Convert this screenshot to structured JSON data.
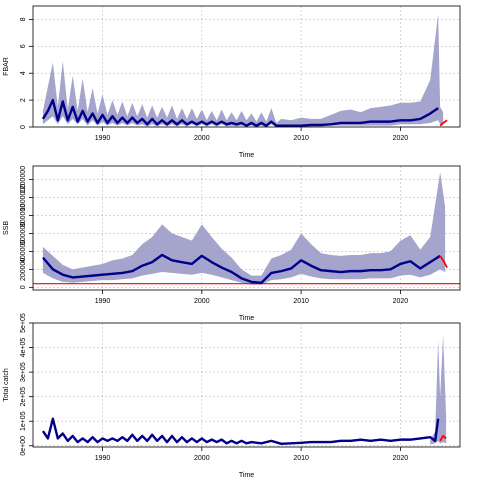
{
  "colors": {
    "median": "#00008b",
    "band": "#9a9ac8",
    "forecast": "#ff0000",
    "grid": "#bbbbbb"
  },
  "chart_data": [
    {
      "type": "line",
      "title": "",
      "xlabel": "Time",
      "ylabel": "FBAR",
      "xlim": [
        1983,
        2026
      ],
      "ylim": [
        0,
        9
      ],
      "xticks": [
        1990,
        2000,
        2010,
        2020
      ],
      "yticks": [
        0,
        2,
        4,
        6,
        8
      ],
      "ytick_labels": [
        "0",
        "2",
        "4",
        "6",
        "8"
      ],
      "grid": true,
      "band": {
        "x": [
          1984.0,
          1984.5,
          1985.0,
          1985.5,
          1986.0,
          1986.5,
          1987.0,
          1987.5,
          1988.0,
          1988.5,
          1989.0,
          1989.5,
          1990.0,
          1990.5,
          1991.0,
          1991.5,
          1992.0,
          1992.5,
          1993.0,
          1993.5,
          1994.0,
          1994.5,
          1995.0,
          1995.5,
          1996.0,
          1996.5,
          1997.0,
          1997.5,
          1998.0,
          1998.5,
          1999.0,
          1999.5,
          2000.0,
          2000.5,
          2001.0,
          2001.5,
          2002.0,
          2002.5,
          2003.0,
          2003.5,
          2004.0,
          2004.5,
          2005.0,
          2005.5,
          2006.0,
          2006.5,
          2007.0,
          2007.5,
          2008.0,
          2009.0,
          2010.0,
          2011.0,
          2012.0,
          2013.0,
          2014.0,
          2015.0,
          2016.0,
          2017.0,
          2018.0,
          2019.0,
          2020.0,
          2021.0,
          2022.0,
          2023.0,
          2023.8,
          2024.0,
          2024.3
        ],
        "upper": [
          1.2,
          3.0,
          4.8,
          1.5,
          4.9,
          1.3,
          3.8,
          1.2,
          3.6,
          1.1,
          2.9,
          1.0,
          2.4,
          0.9,
          2.0,
          0.9,
          1.9,
          0.8,
          1.8,
          0.8,
          1.7,
          0.7,
          1.6,
          0.7,
          1.5,
          0.7,
          1.6,
          0.6,
          1.4,
          0.6,
          1.4,
          0.6,
          1.3,
          0.5,
          1.2,
          0.5,
          1.3,
          0.5,
          1.1,
          0.5,
          1.2,
          0.5,
          1.0,
          0.4,
          1.1,
          0.4,
          1.4,
          0.3,
          0.6,
          0.5,
          0.7,
          0.6,
          0.6,
          0.9,
          1.2,
          1.3,
          1.1,
          1.4,
          1.5,
          1.6,
          1.8,
          1.8,
          1.9,
          3.5,
          8.4,
          1.5,
          1.1
        ],
        "lower": [
          0.2,
          0.5,
          0.8,
          0.2,
          0.8,
          0.2,
          0.6,
          0.2,
          0.6,
          0.1,
          0.5,
          0.1,
          0.4,
          0.1,
          0.3,
          0.1,
          0.3,
          0.1,
          0.3,
          0.1,
          0.2,
          0.05,
          0.2,
          0.05,
          0.2,
          0.05,
          0.2,
          0.05,
          0.2,
          0.05,
          0.2,
          0.05,
          0.2,
          0.05,
          0.2,
          0.05,
          0.2,
          0.05,
          0.1,
          0.05,
          0.1,
          0.05,
          0.1,
          0.0,
          0.1,
          0.0,
          0.2,
          0.0,
          0.05,
          0.05,
          0.05,
          0.05,
          0.05,
          0.1,
          0.1,
          0.1,
          0.1,
          0.1,
          0.1,
          0.1,
          0.2,
          0.2,
          0.2,
          0.3,
          0.5,
          0.2,
          0.1
        ]
      },
      "series": [
        {
          "values_x": [
            1984.0,
            1984.5,
            1985.0,
            1985.5,
            1986.0,
            1986.5,
            1987.0,
            1987.5,
            1988.0,
            1988.5,
            1989.0,
            1989.5,
            1990.0,
            1990.5,
            1991.0,
            1991.5,
            1992.0,
            1992.5,
            1993.0,
            1993.5,
            1994.0,
            1994.5,
            1995.0,
            1995.5,
            1996.0,
            1996.5,
            1997.0,
            1997.5,
            1998.0,
            1998.5,
            1999.0,
            1999.5,
            2000.0,
            2000.5,
            2001.0,
            2001.5,
            2002.0,
            2002.5,
            2003.0,
            2003.5,
            2004.0,
            2004.5,
            2005.0,
            2005.5,
            2006.0,
            2006.5,
            2007.0,
            2007.5,
            2008.0,
            2009.0,
            2010.0,
            2011.0,
            2012.0,
            2013.0,
            2014.0,
            2015.0,
            2016.0,
            2017.0,
            2018.0,
            2019.0,
            2020.0,
            2021.0,
            2022.0,
            2023.0,
            2023.8
          ],
          "values_y": [
            0.6,
            1.2,
            2.0,
            0.5,
            1.9,
            0.5,
            1.5,
            0.4,
            1.2,
            0.4,
            1.0,
            0.3,
            0.9,
            0.3,
            0.8,
            0.3,
            0.7,
            0.3,
            0.7,
            0.3,
            0.6,
            0.2,
            0.6,
            0.2,
            0.5,
            0.2,
            0.5,
            0.2,
            0.5,
            0.2,
            0.4,
            0.2,
            0.4,
            0.2,
            0.4,
            0.2,
            0.4,
            0.2,
            0.3,
            0.2,
            0.3,
            0.1,
            0.3,
            0.1,
            0.3,
            0.1,
            0.4,
            0.1,
            0.1,
            0.1,
            0.1,
            0.15,
            0.15,
            0.2,
            0.3,
            0.3,
            0.3,
            0.4,
            0.4,
            0.4,
            0.5,
            0.5,
            0.6,
            1.0,
            1.4
          ],
          "color": "#00008b"
        },
        {
          "values_x": [
            2024.0,
            2024.3,
            2024.7
          ],
          "values_y": [
            0.1,
            0.3,
            0.5
          ],
          "color": "#ff0000"
        }
      ]
    },
    {
      "type": "line",
      "title": "",
      "xlabel": "Time",
      "ylabel": "SSB",
      "xlim": [
        1983,
        2026
      ],
      "ylim": [
        -30000,
        1350000
      ],
      "xticks": [
        1990,
        2000,
        2010,
        2020
      ],
      "yticks": [
        0,
        200000,
        400000,
        600000,
        800000,
        1000000,
        1200000
      ],
      "ytick_labels": [
        "0",
        "200000",
        "400000",
        "600000",
        "800000",
        "1000000",
        "1200000"
      ],
      "grid": true,
      "reference_line": 40000,
      "band": {
        "x": [
          1984,
          1985,
          1986,
          1987,
          1988,
          1989,
          1990,
          1991,
          1992,
          1993,
          1994,
          1995,
          1996,
          1997,
          1998,
          1999,
          2000,
          2001,
          2002,
          2003,
          2004,
          2005,
          2006,
          2007,
          2008,
          2009,
          2010,
          2011,
          2012,
          2013,
          2014,
          2015,
          2016,
          2017,
          2018,
          2019,
          2020,
          2021,
          2022,
          2023,
          2024,
          2024.5
        ],
        "upper": [
          450000,
          350000,
          250000,
          200000,
          220000,
          240000,
          260000,
          300000,
          320000,
          360000,
          480000,
          560000,
          700000,
          600000,
          560000,
          520000,
          700000,
          560000,
          430000,
          330000,
          200000,
          130000,
          130000,
          320000,
          360000,
          420000,
          600000,
          480000,
          380000,
          360000,
          350000,
          360000,
          360000,
          380000,
          380000,
          400000,
          520000,
          580000,
          420000,
          560000,
          1280000,
          900000
        ],
        "lower": [
          160000,
          100000,
          60000,
          50000,
          60000,
          70000,
          80000,
          80000,
          90000,
          100000,
          130000,
          150000,
          170000,
          160000,
          150000,
          140000,
          160000,
          140000,
          110000,
          80000,
          50000,
          30000,
          30000,
          80000,
          90000,
          110000,
          150000,
          120000,
          100000,
          90000,
          90000,
          90000,
          90000,
          100000,
          100000,
          100000,
          130000,
          140000,
          110000,
          140000,
          200000,
          170000
        ]
      },
      "series": [
        {
          "values_x": [
            1984,
            1985,
            1986,
            1987,
            1988,
            1989,
            1990,
            1991,
            1992,
            1993,
            1994,
            1995,
            1996,
            1997,
            1998,
            1999,
            2000,
            2001,
            2002,
            2003,
            2004,
            2005,
            2006,
            2007,
            2008,
            2009,
            2010,
            2011,
            2012,
            2013,
            2014,
            2015,
            2016,
            2017,
            2018,
            2019,
            2020,
            2021,
            2022,
            2023,
            2024
          ],
          "values_y": [
            330000,
            200000,
            140000,
            110000,
            120000,
            130000,
            140000,
            150000,
            160000,
            180000,
            240000,
            280000,
            360000,
            300000,
            280000,
            260000,
            350000,
            280000,
            220000,
            170000,
            100000,
            60000,
            50000,
            160000,
            180000,
            210000,
            300000,
            240000,
            190000,
            180000,
            170000,
            180000,
            180000,
            190000,
            190000,
            200000,
            260000,
            290000,
            210000,
            280000,
            350000
          ],
          "color": "#00008b"
        },
        {
          "values_x": [
            2024.0,
            2024.3,
            2024.7
          ],
          "values_y": [
            350000,
            300000,
            220000
          ],
          "color": "#ff0000"
        }
      ]
    },
    {
      "type": "line",
      "title": "",
      "xlabel": "Time",
      "ylabel": "Total catch",
      "xlim": [
        1983,
        2026
      ],
      "ylim": [
        -5000,
        500000
      ],
      "xticks": [
        1990,
        2000,
        2010,
        2020
      ],
      "yticks": [
        0,
        100000,
        200000,
        300000,
        400000,
        500000
      ],
      "ytick_labels": [
        "0e+00",
        "1e+05",
        "2e+05",
        "3e+05",
        "4e+05",
        "5e+05"
      ],
      "grid": true,
      "band": {
        "x": [
          2023.0,
          2023.5,
          2023.8,
          2024.0,
          2024.3,
          2024.6
        ],
        "upper": [
          20000,
          60000,
          430000,
          200000,
          450000,
          120000
        ],
        "lower": [
          5000,
          10000,
          20000,
          10000,
          15000,
          10000
        ]
      },
      "series": [
        {
          "values_x": [
            1984.0,
            1984.5,
            1985.0,
            1985.5,
            1986.0,
            1986.5,
            1987.0,
            1987.5,
            1988.0,
            1988.5,
            1989.0,
            1989.5,
            1990.0,
            1990.5,
            1991.0,
            1991.5,
            1992.0,
            1992.5,
            1993.0,
            1993.5,
            1994.0,
            1994.5,
            1995.0,
            1995.5,
            1996.0,
            1996.5,
            1997.0,
            1997.5,
            1998.0,
            1998.5,
            1999.0,
            1999.5,
            2000.0,
            2000.5,
            2001.0,
            2001.5,
            2002.0,
            2002.5,
            2003.0,
            2003.5,
            2004.0,
            2004.5,
            2005.0,
            2006.0,
            2007.0,
            2008.0,
            2009.0,
            2010.0,
            2011.0,
            2012.0,
            2013.0,
            2014.0,
            2015.0,
            2016.0,
            2017.0,
            2018.0,
            2019.0,
            2020.0,
            2021.0,
            2022.0,
            2023.0,
            2023.5,
            2023.8
          ],
          "values_y": [
            60000,
            30000,
            110000,
            30000,
            50000,
            20000,
            40000,
            15000,
            30000,
            15000,
            35000,
            15000,
            30000,
            20000,
            30000,
            20000,
            35000,
            20000,
            45000,
            20000,
            40000,
            20000,
            45000,
            20000,
            40000,
            15000,
            40000,
            15000,
            35000,
            15000,
            30000,
            15000,
            30000,
            15000,
            25000,
            15000,
            25000,
            10000,
            20000,
            10000,
            20000,
            10000,
            15000,
            10000,
            20000,
            8000,
            10000,
            12000,
            15000,
            15000,
            15000,
            20000,
            20000,
            25000,
            20000,
            25000,
            20000,
            25000,
            25000,
            30000,
            35000,
            20000,
            110000
          ],
          "color": "#00008b"
        },
        {
          "values_x": [
            2024.0,
            2024.3,
            2024.6
          ],
          "values_y": [
            20000,
            40000,
            30000
          ],
          "color": "#ff0000"
        }
      ]
    }
  ]
}
